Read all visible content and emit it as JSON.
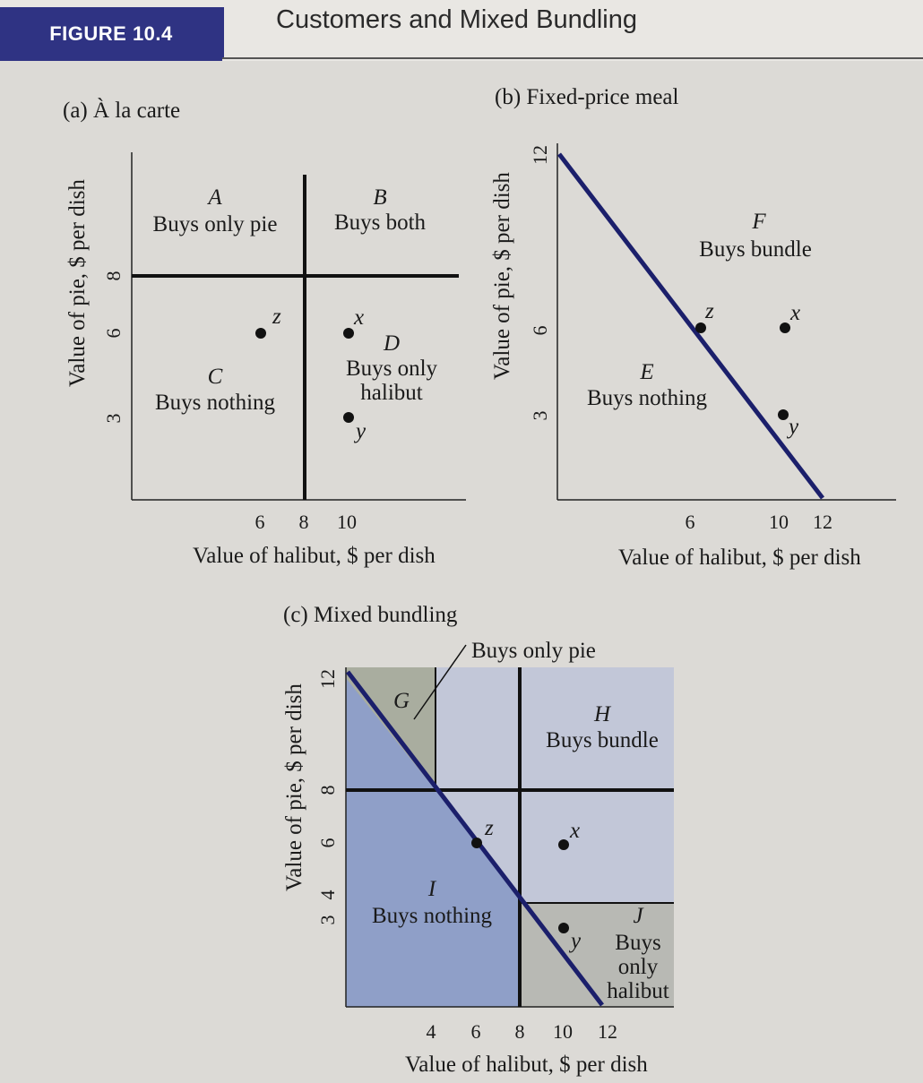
{
  "figure": {
    "number": "FIGURE 10.4",
    "title": "Customers and Mixed Bundling"
  },
  "colors": {
    "figure_label_bg": "#2f3383",
    "boundary_line": "#1b1f6b",
    "region_G": "#a9ad9f",
    "region_H": "#c2c7d8",
    "region_I": "#8f9fc8",
    "region_J": "#b8b9b4"
  },
  "panel_a": {
    "title": "(a) À la carte",
    "ylabel": "Value of pie, $ per dish",
    "xlabel": "Value of halibut, $ per dish",
    "xticks": [
      "6",
      "8",
      "10"
    ],
    "yticks": [
      "8",
      "6",
      "3"
    ],
    "regions": {
      "A": {
        "letter": "A",
        "label": "Buys only pie"
      },
      "B": {
        "letter": "B",
        "label": "Buys both"
      },
      "C": {
        "letter": "C",
        "label": "Buys nothing"
      },
      "D": {
        "letter": "D",
        "label_line1": "Buys only",
        "label_line2": "halibut"
      }
    },
    "points": [
      {
        "name": "z",
        "halibut": 6,
        "pie": 6
      },
      {
        "name": "x",
        "halibut": 10,
        "pie": 6
      },
      {
        "name": "y",
        "halibut": 10,
        "pie": 3
      }
    ]
  },
  "panel_b": {
    "title": "(b) Fixed-price meal",
    "ylabel": "Value of pie, $ per dish",
    "xlabel": "Value of halibut, $ per dish",
    "xticks": [
      "6",
      "10",
      "12"
    ],
    "yticks": [
      "12",
      "6",
      "3"
    ],
    "regions": {
      "F": {
        "letter": "F",
        "label": "Buys bundle"
      },
      "E": {
        "letter": "E",
        "label": "Buys nothing"
      }
    },
    "points": [
      {
        "name": "z",
        "halibut": 6,
        "pie": 6
      },
      {
        "name": "x",
        "halibut": 10,
        "pie": 6
      },
      {
        "name": "y",
        "halibut": 10,
        "pie": 3
      }
    ]
  },
  "panel_c": {
    "title": "(c) Mixed bundling",
    "ylabel": "Value of pie, $ per dish",
    "xlabel": "Value of halibut, $ per dish",
    "xticks": [
      "4",
      "6",
      "8",
      "10",
      "12"
    ],
    "yticks": [
      "12",
      "8",
      "6",
      "4",
      "3"
    ],
    "callout": "Buys only pie",
    "regions": {
      "G": {
        "letter": "G"
      },
      "H": {
        "letter": "H",
        "label": "Buys bundle"
      },
      "I": {
        "letter": "I",
        "label": "Buys nothing"
      },
      "J": {
        "letter": "J",
        "label_line1": "Buys",
        "label_line2": "only",
        "label_line3": "halibut"
      }
    },
    "points": [
      {
        "name": "z",
        "halibut": 6,
        "pie": 6
      },
      {
        "name": "x",
        "halibut": 10,
        "pie": 6
      },
      {
        "name": "y",
        "halibut": 10,
        "pie": 3
      }
    ]
  }
}
